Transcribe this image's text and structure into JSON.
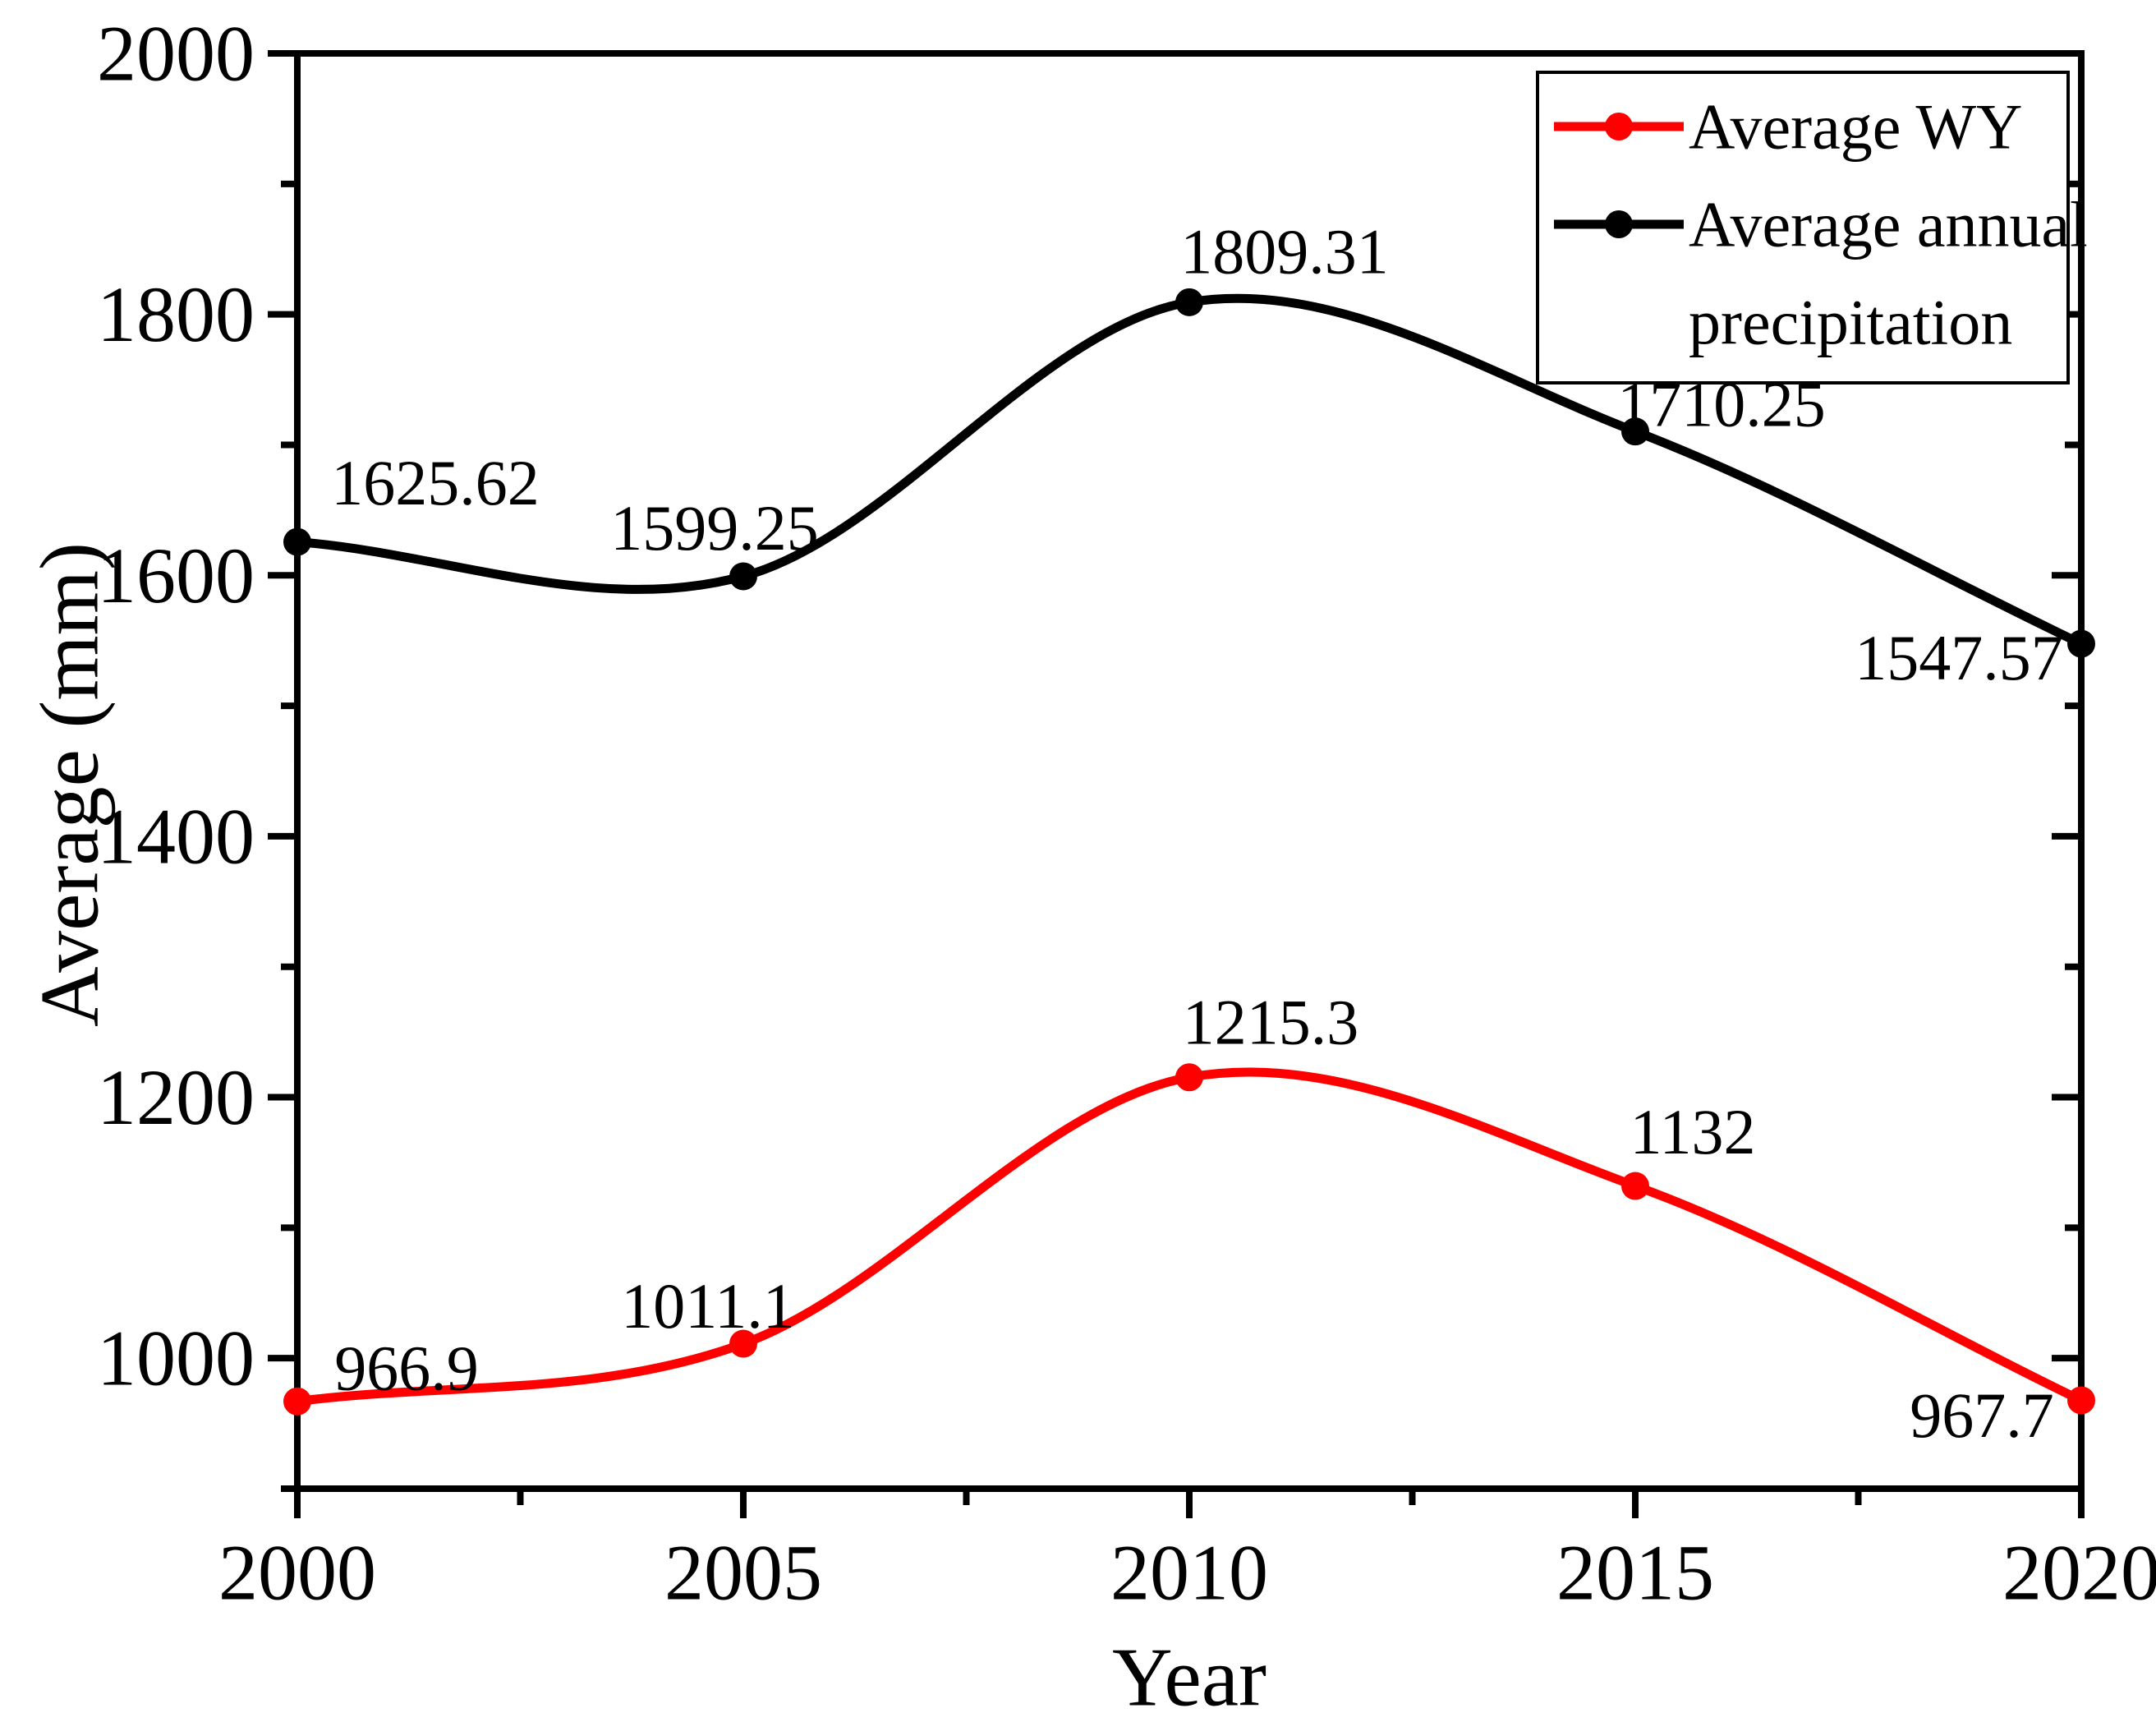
{
  "figure": {
    "background": "#ffffff",
    "frame_color": "#000000"
  },
  "axes": {
    "x_title": "Year",
    "y_title": "Average (mm)"
  },
  "legend": {
    "entries": [
      {
        "label": "Average WY",
        "label_lines": [
          "Average WY"
        ],
        "color": "#ff0000"
      },
      {
        "label": "Average annual precipitation",
        "label_lines": [
          "Average annual",
          "precipitation"
        ],
        "color": "#000000"
      }
    ]
  },
  "chart_data": {
    "type": "line",
    "title": "",
    "xlabel": "Year",
    "ylabel": "Average (mm)",
    "x": [
      2000,
      2005,
      2010,
      2015,
      2020
    ],
    "x_tick_labels": [
      "2000",
      "2005",
      "2010",
      "2015",
      "2020"
    ],
    "series": [
      {
        "name": "Average WY",
        "color": "#ff0000",
        "values": [
          966.9,
          1011.1,
          1215.3,
          1132,
          967.7
        ],
        "point_labels": [
          "966.9",
          "1011.1",
          "1215.3",
          "1132",
          "967.7"
        ]
      },
      {
        "name": "Average annual precipitation",
        "color": "#000000",
        "values": [
          1625.62,
          1599.25,
          1809.31,
          1710.25,
          1547.57
        ],
        "point_labels": [
          "1625.62",
          "1599.25",
          "1809.31",
          "1710.25",
          "1547.57"
        ]
      }
    ],
    "xlim": [
      2000,
      2020
    ],
    "ylim": [
      900,
      2000
    ],
    "y_major_ticks": [
      1000,
      1200,
      1400,
      1600,
      1800,
      2000
    ],
    "y_major_tick_labels": [
      "1000",
      "1200",
      "1400",
      "1600",
      "1800",
      "2000"
    ],
    "y_minor_tick_step": 100,
    "x_minor_tick_step": 2.5,
    "grid": false,
    "curve": "smooth-spline",
    "markers": "filled-circle",
    "legend_position": "top-right"
  }
}
